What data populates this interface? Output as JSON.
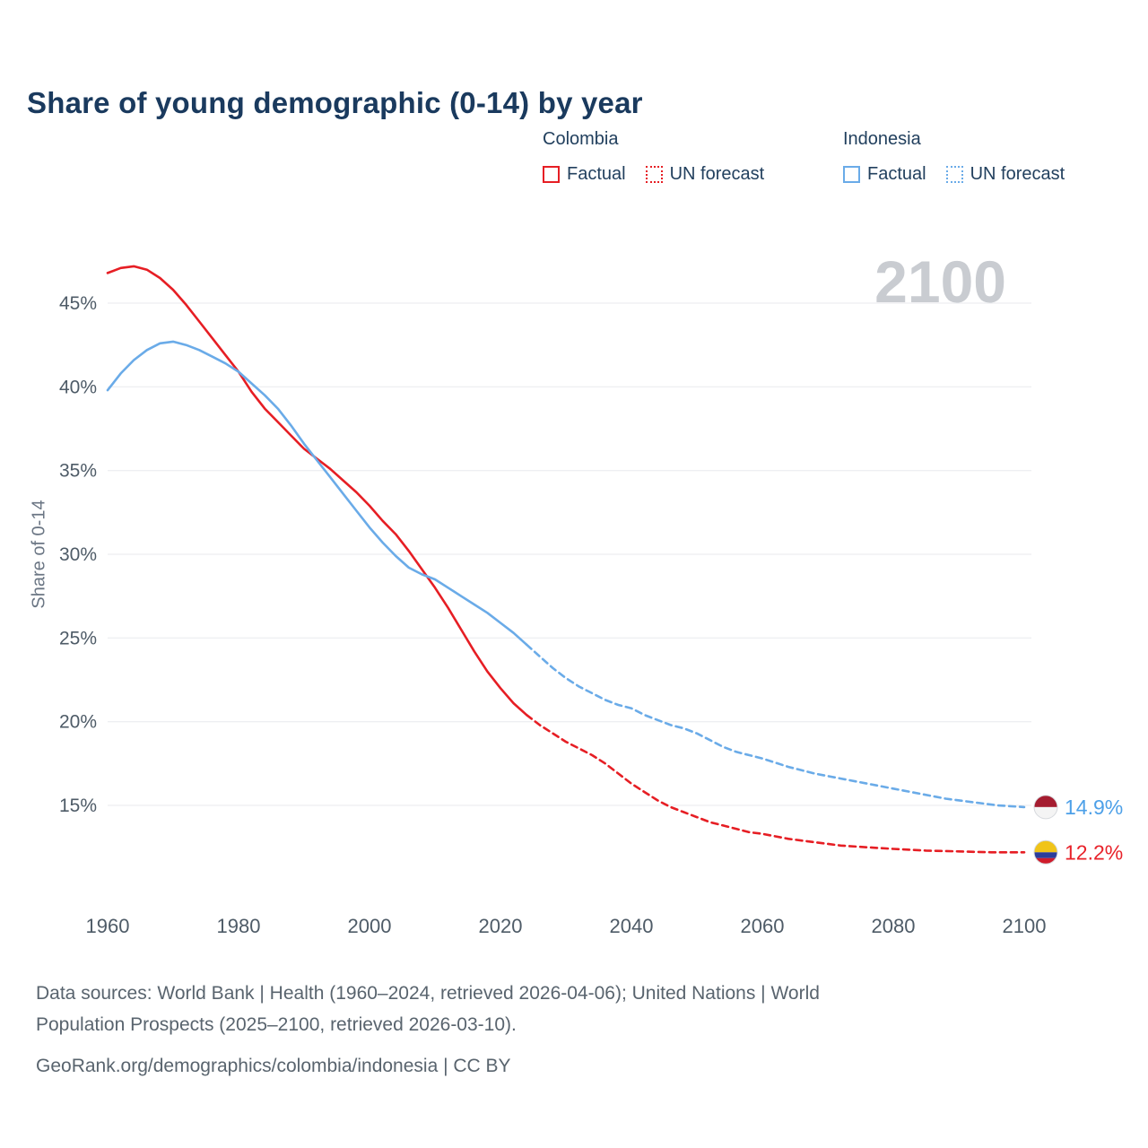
{
  "title": "Share of young demographic (0-14) by year",
  "watermark": "2100",
  "legend": {
    "groups": [
      {
        "country": "Colombia",
        "color": "#e61e24",
        "items": [
          {
            "label": "Factual",
            "style": "solid"
          },
          {
            "label": "UN forecast",
            "style": "dotted"
          }
        ]
      },
      {
        "country": "Indonesia",
        "color": "#6aabe8",
        "items": [
          {
            "label": "Factual",
            "style": "solid"
          },
          {
            "label": "UN forecast",
            "style": "dotted"
          }
        ]
      }
    ]
  },
  "axes": {
    "y_label": "Share of 0-14",
    "y_tick_suffix": "%"
  },
  "end_labels": [
    {
      "country": "Indonesia",
      "value": "14.9%",
      "value_num": 14.9,
      "color": "#4da0e8",
      "flag_stripes": [
        {
          "color": "#a51c30",
          "frac": 0.5
        },
        {
          "color": "#f4f4f4",
          "frac": 0.5
        }
      ]
    },
    {
      "country": "Colombia",
      "value": "12.2%",
      "value_num": 12.2,
      "color": "#e8222a",
      "flag_stripes": [
        {
          "color": "#f0c419",
          "frac": 0.5
        },
        {
          "color": "#2b3d9b",
          "frac": 0.25
        },
        {
          "color": "#cf1b2b",
          "frac": 0.25
        }
      ]
    }
  ],
  "footer": {
    "lines": [
      "Data sources: World Bank | Health (1960–2024, retrieved 2026-04-06); United Nations | World",
      "Population Prospects (2025–2100, retrieved 2026-03-10).",
      "GeoRank.org/demographics/colombia/indonesia | CC BY"
    ]
  },
  "chart_data": {
    "type": "line",
    "title": "Share of young demographic (0-14) by year",
    "xlabel": "",
    "ylabel": "Share of 0-14",
    "xlim": [
      1957,
      2117
    ],
    "ylim": [
      11,
      48.5
    ],
    "x_ticks": [
      1960,
      1980,
      2000,
      2020,
      2040,
      2060,
      2080,
      2100
    ],
    "y_ticks": [
      15,
      20,
      25,
      30,
      35,
      40,
      45
    ],
    "grid": "horizontal",
    "legend_position": "top",
    "series": [
      {
        "name": "Colombia Factual",
        "color": "#e61e24",
        "style": "solid",
        "points": [
          [
            1960,
            46.8
          ],
          [
            1962,
            47.1
          ],
          [
            1964,
            47.2
          ],
          [
            1966,
            47.0
          ],
          [
            1968,
            46.5
          ],
          [
            1970,
            45.8
          ],
          [
            1972,
            44.9
          ],
          [
            1974,
            43.9
          ],
          [
            1976,
            42.9
          ],
          [
            1978,
            41.9
          ],
          [
            1980,
            40.9
          ],
          [
            1982,
            39.7
          ],
          [
            1984,
            38.7
          ],
          [
            1986,
            37.9
          ],
          [
            1988,
            37.1
          ],
          [
            1990,
            36.3
          ],
          [
            1992,
            35.7
          ],
          [
            1994,
            35.1
          ],
          [
            1996,
            34.4
          ],
          [
            1998,
            33.7
          ],
          [
            2000,
            32.9
          ],
          [
            2002,
            32.0
          ],
          [
            2004,
            31.2
          ],
          [
            2006,
            30.2
          ],
          [
            2008,
            29.1
          ],
          [
            2010,
            28.0
          ],
          [
            2012,
            26.8
          ],
          [
            2014,
            25.5
          ],
          [
            2016,
            24.2
          ],
          [
            2018,
            23.0
          ],
          [
            2020,
            22.0
          ],
          [
            2022,
            21.1
          ],
          [
            2024,
            20.4
          ]
        ]
      },
      {
        "name": "Colombia UN forecast",
        "color": "#e61e24",
        "style": "dashed",
        "points": [
          [
            2024,
            20.4
          ],
          [
            2026,
            19.8
          ],
          [
            2028,
            19.3
          ],
          [
            2030,
            18.8
          ],
          [
            2032,
            18.4
          ],
          [
            2034,
            18.0
          ],
          [
            2036,
            17.5
          ],
          [
            2038,
            16.9
          ],
          [
            2040,
            16.3
          ],
          [
            2042,
            15.8
          ],
          [
            2044,
            15.3
          ],
          [
            2046,
            14.9
          ],
          [
            2048,
            14.6
          ],
          [
            2050,
            14.3
          ],
          [
            2052,
            14.0
          ],
          [
            2054,
            13.8
          ],
          [
            2056,
            13.6
          ],
          [
            2058,
            13.4
          ],
          [
            2060,
            13.3
          ],
          [
            2064,
            13.0
          ],
          [
            2068,
            12.8
          ],
          [
            2072,
            12.6
          ],
          [
            2076,
            12.5
          ],
          [
            2080,
            12.4
          ],
          [
            2085,
            12.3
          ],
          [
            2090,
            12.25
          ],
          [
            2095,
            12.2
          ],
          [
            2100,
            12.2
          ]
        ]
      },
      {
        "name": "Indonesia Factual",
        "color": "#6aabe8",
        "style": "solid",
        "points": [
          [
            1960,
            39.8
          ],
          [
            1962,
            40.8
          ],
          [
            1964,
            41.6
          ],
          [
            1966,
            42.2
          ],
          [
            1968,
            42.6
          ],
          [
            1970,
            42.7
          ],
          [
            1972,
            42.5
          ],
          [
            1974,
            42.2
          ],
          [
            1976,
            41.8
          ],
          [
            1978,
            41.4
          ],
          [
            1980,
            40.9
          ],
          [
            1982,
            40.2
          ],
          [
            1984,
            39.5
          ],
          [
            1986,
            38.7
          ],
          [
            1988,
            37.7
          ],
          [
            1990,
            36.6
          ],
          [
            1992,
            35.6
          ],
          [
            1994,
            34.6
          ],
          [
            1996,
            33.6
          ],
          [
            1998,
            32.6
          ],
          [
            2000,
            31.6
          ],
          [
            2002,
            30.7
          ],
          [
            2004,
            29.9
          ],
          [
            2006,
            29.2
          ],
          [
            2008,
            28.8
          ],
          [
            2010,
            28.5
          ],
          [
            2012,
            28.0
          ],
          [
            2014,
            27.5
          ],
          [
            2016,
            27.0
          ],
          [
            2018,
            26.5
          ],
          [
            2020,
            25.9
          ],
          [
            2022,
            25.3
          ],
          [
            2024,
            24.6
          ]
        ]
      },
      {
        "name": "Indonesia UN forecast",
        "color": "#6aabe8",
        "style": "dashed",
        "points": [
          [
            2024,
            24.6
          ],
          [
            2026,
            23.9
          ],
          [
            2028,
            23.2
          ],
          [
            2030,
            22.6
          ],
          [
            2032,
            22.1
          ],
          [
            2034,
            21.7
          ],
          [
            2036,
            21.3
          ],
          [
            2038,
            21.0
          ],
          [
            2040,
            20.8
          ],
          [
            2042,
            20.4
          ],
          [
            2044,
            20.1
          ],
          [
            2046,
            19.8
          ],
          [
            2048,
            19.6
          ],
          [
            2050,
            19.3
          ],
          [
            2052,
            18.9
          ],
          [
            2054,
            18.5
          ],
          [
            2056,
            18.2
          ],
          [
            2058,
            18.0
          ],
          [
            2060,
            17.8
          ],
          [
            2064,
            17.3
          ],
          [
            2068,
            16.9
          ],
          [
            2072,
            16.6
          ],
          [
            2076,
            16.3
          ],
          [
            2080,
            16.0
          ],
          [
            2084,
            15.7
          ],
          [
            2088,
            15.4
          ],
          [
            2092,
            15.2
          ],
          [
            2096,
            15.0
          ],
          [
            2100,
            14.9
          ]
        ]
      }
    ]
  }
}
